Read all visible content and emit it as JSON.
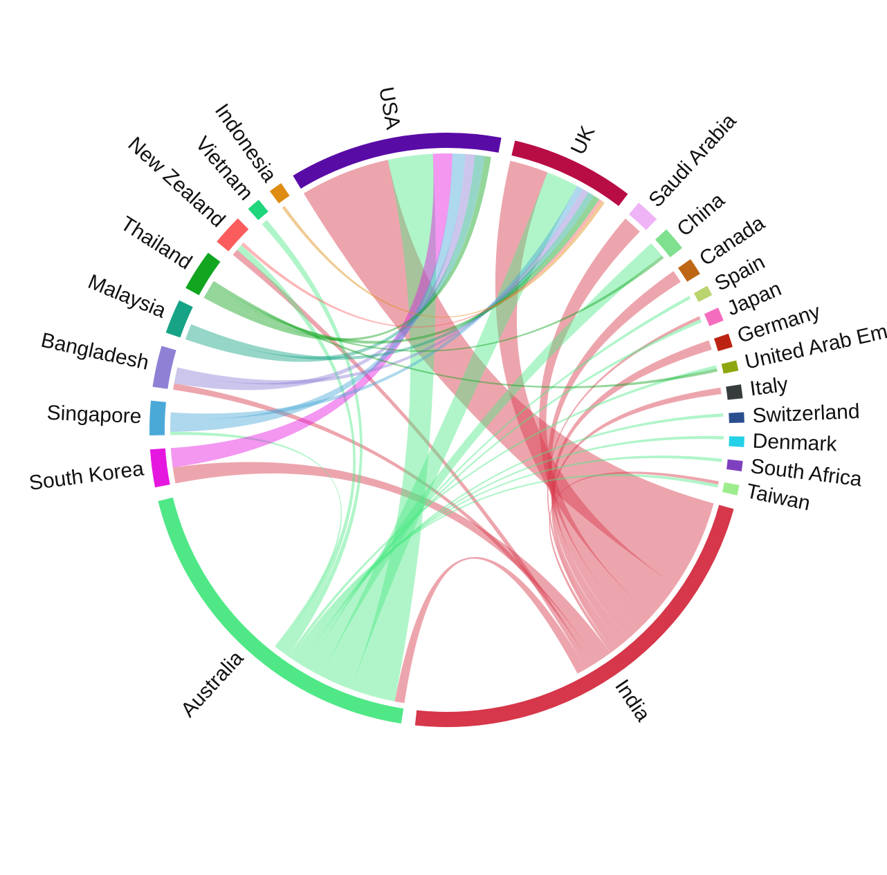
{
  "chart_data": {
    "type": "chord",
    "groups": [
      {
        "name": "India",
        "color": "#d6374a",
        "total": 120
      },
      {
        "name": "Australia",
        "color": "#50e887",
        "total": 100
      },
      {
        "name": "South Korea",
        "color": "#e518e0",
        "total": 11
      },
      {
        "name": "Singapore",
        "color": "#4ba9d8",
        "total": 10
      },
      {
        "name": "Bangladesh",
        "color": "#8f80d6",
        "total": 12
      },
      {
        "name": "Malaysia",
        "color": "#16a386",
        "total": 10
      },
      {
        "name": "Thailand",
        "color": "#11a520",
        "total": 12
      },
      {
        "name": "New Zealand",
        "color": "#fb5d5d",
        "total": 9
      },
      {
        "name": "Vietnam",
        "color": "#1fd67d",
        "total": 4
      },
      {
        "name": "Indonesia",
        "color": "#de8c12",
        "total": 4
      },
      {
        "name": "USA",
        "color": "#590ba6",
        "total": 62
      },
      {
        "name": "UK",
        "color": "#b80c44",
        "total": 36
      },
      {
        "name": "Saudi Arabia",
        "color": "#eeb4f6",
        "total": 7
      },
      {
        "name": "China",
        "color": "#7fe08f",
        "total": 7
      },
      {
        "name": "Canada",
        "color": "#bd6716",
        "total": 5
      },
      {
        "name": "Spain",
        "color": "#bad46f",
        "total": 3
      },
      {
        "name": "Japan",
        "color": "#f46dbf",
        "total": 4
      },
      {
        "name": "Germany",
        "color": "#bd2313",
        "total": 4
      },
      {
        "name": "United Arab Emirates",
        "color": "#8ea60e",
        "total": 3
      },
      {
        "name": "Italy",
        "color": "#363d3c",
        "total": 4
      },
      {
        "name": "Switzerland",
        "color": "#2b4e8f",
        "total": 3
      },
      {
        "name": "Denmark",
        "color": "#24d1e8",
        "total": 3
      },
      {
        "name": "South Africa",
        "color": "#7f40c0",
        "total": 3
      },
      {
        "name": "Taiwan",
        "color": "#9ded8e",
        "total": 3
      }
    ],
    "links": [
      {
        "source": "India",
        "target": "USA",
        "value": 28
      },
      {
        "source": "India",
        "target": "UK",
        "value": 12
      },
      {
        "source": "India",
        "target": "Saudi Arabia",
        "value": 6
      },
      {
        "source": "India",
        "target": "Canada",
        "value": 4
      },
      {
        "source": "India",
        "target": "Germany",
        "value": 3
      },
      {
        "source": "India",
        "target": "Italy",
        "value": 2
      },
      {
        "source": "India",
        "target": "Japan",
        "value": 1
      },
      {
        "source": "India",
        "target": "Taiwan",
        "value": 1
      },
      {
        "source": "India",
        "target": "South Korea",
        "value": 5
      },
      {
        "source": "India",
        "target": "Bangladesh",
        "value": 2
      },
      {
        "source": "India",
        "target": "New Zealand",
        "value": 2
      },
      {
        "source": "India",
        "target": "Australia",
        "value": 3
      },
      {
        "source": "Australia",
        "target": "USA",
        "value": 14
      },
      {
        "source": "Australia",
        "target": "UK",
        "value": 10
      },
      {
        "source": "Australia",
        "target": "China",
        "value": 5
      },
      {
        "source": "Australia",
        "target": "Spain",
        "value": 1
      },
      {
        "source": "Australia",
        "target": "Japan",
        "value": 1
      },
      {
        "source": "Australia",
        "target": "Switzerland",
        "value": 1
      },
      {
        "source": "Australia",
        "target": "Denmark",
        "value": 1
      },
      {
        "source": "Australia",
        "target": "South Africa",
        "value": 1
      },
      {
        "source": "Australia",
        "target": "Taiwan",
        "value": 1
      },
      {
        "source": "Australia",
        "target": "United Arab Emirates",
        "value": 1
      },
      {
        "source": "Australia",
        "target": "Vietnam",
        "value": 2
      },
      {
        "source": "Australia",
        "target": "New Zealand",
        "value": 2
      },
      {
        "source": "Australia",
        "target": "Singapore",
        "value": 1
      },
      {
        "source": "South Korea",
        "target": "USA",
        "value": 6
      },
      {
        "source": "Singapore",
        "target": "USA",
        "value": 4
      },
      {
        "source": "Singapore",
        "target": "UK",
        "value": 2
      },
      {
        "source": "Bangladesh",
        "target": "USA",
        "value": 3
      },
      {
        "source": "Bangladesh",
        "target": "UK",
        "value": 2
      },
      {
        "source": "Malaysia",
        "target": "USA",
        "value": 3
      },
      {
        "source": "Malaysia",
        "target": "UK",
        "value": 2
      },
      {
        "source": "Thailand",
        "target": "USA",
        "value": 2
      },
      {
        "source": "Thailand",
        "target": "UK",
        "value": 2
      },
      {
        "source": "Thailand",
        "target": "China",
        "value": 1
      },
      {
        "source": "Thailand",
        "target": "United Arab Emirates",
        "value": 1
      },
      {
        "source": "New Zealand",
        "target": "UK",
        "value": 1
      },
      {
        "source": "Indonesia",
        "target": "UK",
        "value": 1
      }
    ]
  }
}
